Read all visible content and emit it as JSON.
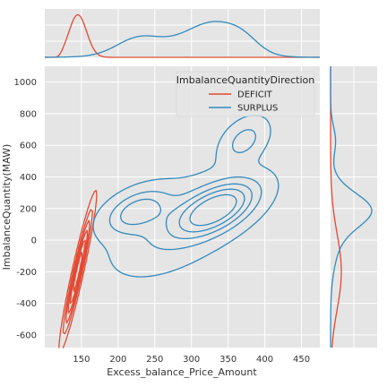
{
  "chart_data": {
    "type": "kde_joint",
    "xlabel": "Excess_balance_Price_Amount",
    "ylabel": "ImbalanceQuantity(MAW)",
    "xlim": [
      100,
      475
    ],
    "ylim": [
      -680,
      1100
    ],
    "x_ticks": [
      150,
      200,
      250,
      300,
      350,
      400,
      450
    ],
    "y_ticks": [
      -600,
      -400,
      -200,
      0,
      200,
      400,
      600,
      800,
      1000
    ],
    "grid": true,
    "legend": {
      "title": "ImbalanceQuantityDirection",
      "placement": "top-right",
      "entries": [
        "DEFICIT",
        "SURPLUS"
      ]
    },
    "colors": {
      "DEFICIT": "#E24A33",
      "SURPLUS": "#348ABD",
      "background": "#E5E5E5",
      "grid": "#FFFFFF"
    },
    "series": [
      {
        "name": "DEFICIT",
        "color": "#E24A33",
        "modes": [
          {
            "x": 145,
            "y": -200,
            "sx": 12,
            "sy": 240,
            "rho": 0.95,
            "w": 1.0
          }
        ],
        "contour_levels": [
          0.1,
          0.25,
          0.4,
          0.55,
          0.7,
          0.85
        ],
        "marginal_x": {
          "peak_at": 148,
          "range": [
            120,
            170
          ]
        },
        "marginal_y": {
          "peak_at": -200,
          "range": [
            -600,
            200
          ]
        }
      },
      {
        "name": "SURPLUS",
        "color": "#348ABD",
        "modes": [
          {
            "x": 335,
            "y": 200,
            "sx": 35,
            "sy": 110,
            "rho": 0.55,
            "w": 1.0
          },
          {
            "x": 225,
            "y": 185,
            "sx": 28,
            "sy": 90,
            "rho": 0.45,
            "w": 0.55
          },
          {
            "x": 372,
            "y": 630,
            "sx": 20,
            "sy": 90,
            "rho": 0.4,
            "w": 0.35
          },
          {
            "x": 282,
            "y": 90,
            "sx": 55,
            "sy": 190,
            "rho": 0.55,
            "w": 0.3
          }
        ],
        "contour_levels": [
          0.06,
          0.22,
          0.38,
          0.54,
          0.72
        ],
        "marginal_x": {
          "peak_at": 350,
          "shoulder_at": 230,
          "range": [
            120,
            450
          ]
        },
        "marginal_y": {
          "peak_at": 200,
          "range": [
            -200,
            1000
          ]
        }
      }
    ]
  }
}
